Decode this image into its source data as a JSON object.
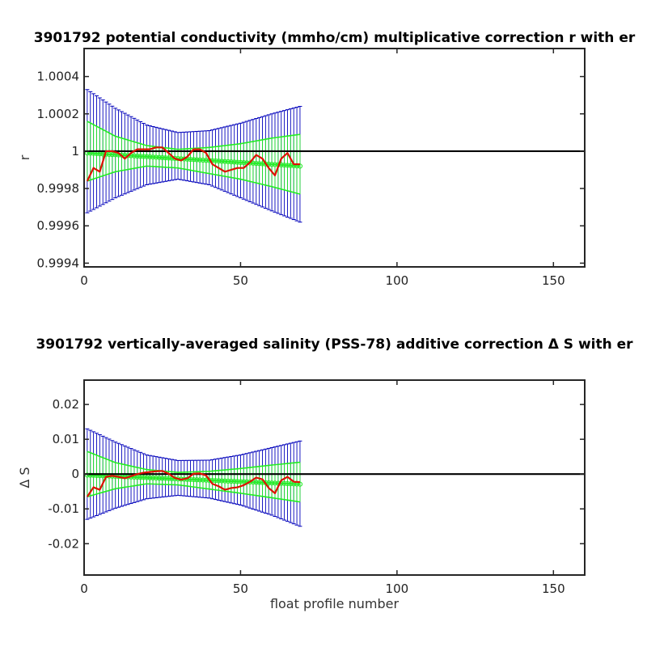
{
  "chart_data": [
    {
      "type": "line",
      "title": "3901792 potential conductivity (mmho/cm) multiplicative correction r with er",
      "xlabel": "",
      "ylabel": "r",
      "xlim": [
        0,
        160
      ],
      "ylim": [
        0.99938,
        1.00055
      ],
      "xticks": [
        0,
        50,
        100,
        150
      ],
      "xtick_labels": [
        "0",
        "50",
        "100",
        "150"
      ],
      "yticks": [
        0.9994,
        0.9996,
        0.9998,
        1.0,
        1.0002,
        1.0004
      ],
      "ytick_labels": [
        "0.9994",
        "0.9996",
        "0.9998",
        "1",
        "1.0002",
        "1.0004"
      ],
      "reference_line": 1.0,
      "profiles": {
        "start": 1,
        "end": 69
      },
      "correction_series": {
        "x": [
          1,
          3,
          5,
          7,
          9,
          11,
          13,
          15,
          17,
          19,
          21,
          23,
          25,
          27,
          29,
          31,
          33,
          35,
          37,
          39,
          41,
          43,
          45,
          47,
          49,
          51,
          53,
          55,
          57,
          59,
          61,
          63,
          65,
          67,
          69
        ],
        "y": [
          0.99984,
          0.99991,
          0.99989,
          1.0,
          1.0,
          0.99999,
          0.99996,
          0.99999,
          1.00001,
          1.00001,
          1.00001,
          1.00002,
          1.00002,
          0.99999,
          0.99996,
          0.99995,
          0.99997,
          1.00001,
          1.00001,
          0.99999,
          0.99993,
          0.99991,
          0.99989,
          0.9999,
          0.99991,
          0.99991,
          0.99994,
          0.99998,
          0.99996,
          0.99991,
          0.99987,
          0.99996,
          0.99999,
          0.99993,
          0.99993
        ]
      },
      "fit_series": {
        "x": [
          1,
          69
        ],
        "y": [
          0.99999,
          0.99992
        ]
      },
      "inner_band": {
        "x": [
          1,
          10,
          20,
          30,
          40,
          50,
          60,
          69
        ],
        "upper": [
          1.00016,
          1.00008,
          1.00003,
          1.00001,
          1.00002,
          1.00004,
          1.00007,
          1.00009
        ],
        "lower": [
          0.99984,
          0.99989,
          0.99992,
          0.99991,
          0.99988,
          0.99985,
          0.99981,
          0.99977
        ]
      },
      "outer_band": {
        "x": [
          1,
          10,
          20,
          30,
          40,
          50,
          60,
          69
        ],
        "upper": [
          1.00033,
          1.00023,
          1.00014,
          1.0001,
          1.00011,
          1.00015,
          1.0002,
          1.00024
        ],
        "lower": [
          0.99967,
          0.99975,
          0.99982,
          0.99985,
          0.99982,
          0.99975,
          0.99968,
          0.99962
        ]
      },
      "colors": {
        "correction": "#dd1100",
        "fit": "#22ee22",
        "inner_error": "#22ee22",
        "outer_error": "#0000bb",
        "reference": "#000000"
      },
      "grid": false,
      "legend": "none"
    },
    {
      "type": "line",
      "title": "3901792 vertically-averaged salinity (PSS-78) additive correction Δ S with er",
      "xlabel": "float profile number",
      "ylabel": "Δ S",
      "xlim": [
        0,
        160
      ],
      "ylim": [
        -0.029,
        0.027
      ],
      "xticks": [
        0,
        50,
        100,
        150
      ],
      "xtick_labels": [
        "0",
        "50",
        "100",
        "150"
      ],
      "yticks": [
        -0.02,
        -0.01,
        0,
        0.01,
        0.02
      ],
      "ytick_labels": [
        "-0.02",
        "-0.01",
        "0",
        "0.01",
        "0.02"
      ],
      "reference_line": 0,
      "profiles": {
        "start": 1,
        "end": 69
      },
      "correction_series": {
        "x": [
          1,
          3,
          5,
          7,
          9,
          11,
          13,
          15,
          17,
          19,
          21,
          23,
          25,
          27,
          29,
          31,
          33,
          35,
          37,
          39,
          41,
          43,
          45,
          47,
          49,
          51,
          53,
          55,
          57,
          59,
          61,
          63,
          65,
          67,
          69
        ],
        "y": [
          -0.0065,
          -0.0038,
          -0.0045,
          -0.0008,
          -0.0005,
          -0.0008,
          -0.0012,
          -0.0006,
          0.0,
          0.0004,
          0.0006,
          0.0008,
          0.0009,
          0.0001,
          -0.0011,
          -0.0016,
          -0.0012,
          0.0001,
          0.0002,
          -0.0004,
          -0.0028,
          -0.0035,
          -0.0045,
          -0.004,
          -0.0038,
          -0.0032,
          -0.0022,
          -0.001,
          -0.0015,
          -0.004,
          -0.0055,
          -0.0018,
          -0.0008,
          -0.0022,
          -0.0023
        ]
      },
      "fit_series": {
        "x": [
          1,
          69
        ],
        "y": [
          -0.0003,
          -0.0029
        ]
      },
      "inner_band": {
        "x": [
          1,
          10,
          20,
          30,
          40,
          50,
          60,
          69
        ],
        "upper": [
          0.0065,
          0.0033,
          0.0013,
          0.0005,
          0.0008,
          0.0016,
          0.0026,
          0.0034
        ],
        "lower": [
          -0.0065,
          -0.0042,
          -0.0028,
          -0.0031,
          -0.0043,
          -0.0055,
          -0.0068,
          -0.008
        ]
      },
      "outer_band": {
        "x": [
          1,
          10,
          20,
          30,
          40,
          50,
          60,
          69
        ],
        "upper": [
          0.013,
          0.0092,
          0.0055,
          0.0039,
          0.004,
          0.0055,
          0.0076,
          0.0095
        ],
        "lower": [
          -0.013,
          -0.0098,
          -0.0071,
          -0.0061,
          -0.0069,
          -0.0089,
          -0.0118,
          -0.015
        ]
      },
      "colors": {
        "correction": "#dd1100",
        "fit": "#22ee22",
        "inner_error": "#22ee22",
        "outer_error": "#0000bb",
        "reference": "#000000"
      },
      "grid": false,
      "legend": "none"
    }
  ]
}
